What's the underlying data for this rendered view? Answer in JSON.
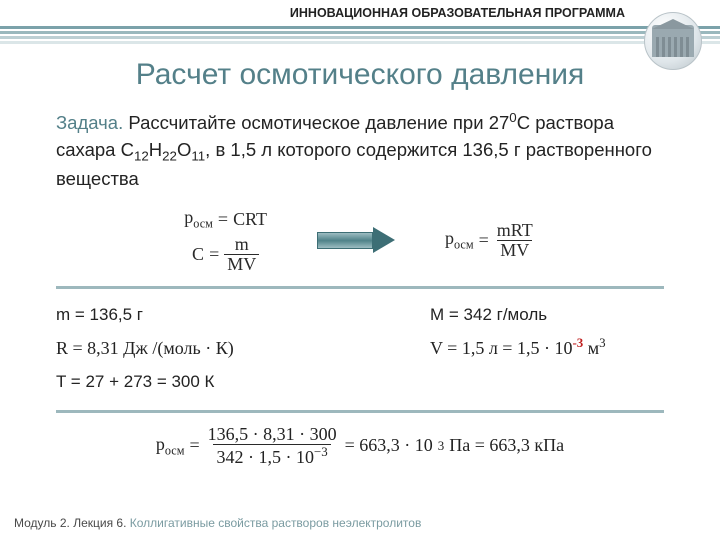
{
  "colors": {
    "header_text": "#222222",
    "title_text": "#548089",
    "lead_text": "#548089",
    "body_text": "#232323",
    "rule": "#9db8bd",
    "stripes": [
      "#7ba2aa",
      "#9ab8bd",
      "#bccfd3",
      "#dbe6e8"
    ],
    "arrow_border": "#3d6e75",
    "footer_text": "#494949",
    "footer_accent": "#7a9ba1"
  },
  "header": "ИННОВАЦИОННАЯ ОБРАЗОВАТЕЛЬНАЯ ПРОГРАММА",
  "title": "Расчет осмотического давления",
  "problem": {
    "lead": "Задача.",
    "text_before_temp": " Рассчитайте осмотическое давление при ",
    "temp_val": "27",
    "temp_sup": "0",
    "temp_unit": "С",
    "text_mid": " раствора сахара С",
    "f_sub1": "12",
    "f_mid1": "Н",
    "f_sub2": "22",
    "f_mid2": "О",
    "f_sub3": "11",
    "text_after": ", в 1,5 л которого содержится 136,5 г растворенного вещества"
  },
  "eq": {
    "p_label": "p",
    "p_sub": "осм",
    "eq1_rhs": "CRT",
    "c_lhs": "C",
    "frac_num": "m",
    "frac_den": "MV",
    "eq2_rhs_num": "mRT",
    "eq2_rhs_den": "MV"
  },
  "data": {
    "m": "m = 136,5 г",
    "R": "R = 8,31 Дж /(моль · К)",
    "T": "T = 27 + 273 = 300 К",
    "M": "М = 342 г/моль",
    "V_pre": "V = 1,5 л = 1,5 · 10",
    "V_sup": "-3",
    "V_post": " м",
    "V_unit_sup": "3"
  },
  "final": {
    "num": "136,5 · 8,31 · 300",
    "den_pre": "342 · 1,5 · 10",
    "den_sup": "−3",
    "mid": " = 663,3 · 10",
    "mid_sup": "3",
    "tail": " Па = 663,3 кПа"
  },
  "footer": {
    "plain": "Модуль 2. Лекция 6. ",
    "accent": "Коллигативные свойства растворов неэлектролитов"
  }
}
